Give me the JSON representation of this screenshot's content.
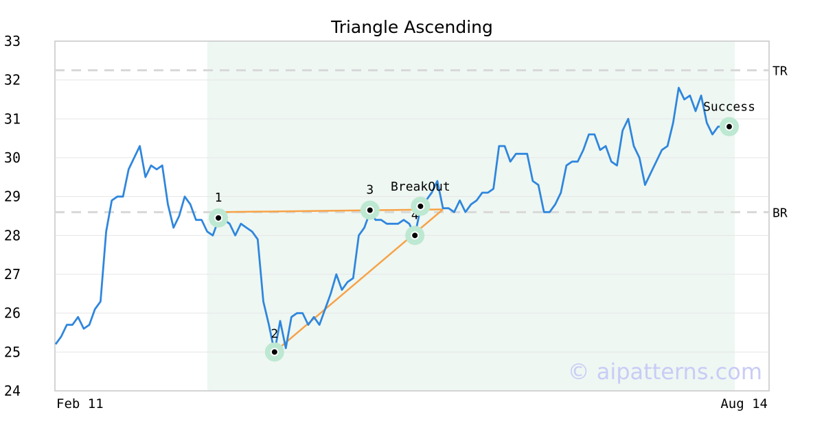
{
  "chart_data": {
    "type": "line",
    "title": "Triangle Ascending",
    "xlabel": "",
    "ylabel": "",
    "ylim": [
      24,
      33
    ],
    "yticks": [
      24,
      25,
      26,
      27,
      28,
      29,
      30,
      31,
      32,
      33
    ],
    "x_tick_labels": [
      "Feb 11",
      "Aug 14"
    ],
    "grid": "horizontal",
    "series": [
      {
        "values": [
          25.2,
          25.4,
          25.7,
          25.7,
          25.9,
          25.6,
          25.7,
          26.1,
          26.3,
          28.1,
          28.9,
          29.0,
          29.0,
          29.7,
          30.0,
          30.3,
          29.5,
          29.8,
          29.7,
          29.8,
          28.8,
          28.2,
          28.5,
          29.0,
          28.8,
          28.4,
          28.4,
          28.1,
          28.0,
          28.4,
          28.4,
          28.3,
          28.0,
          28.3,
          28.2,
          28.1,
          27.9,
          26.3,
          25.7,
          25.0,
          25.8,
          25.1,
          25.9,
          26.0,
          26.0,
          25.7,
          25.9,
          25.7,
          26.1,
          26.5,
          27.0,
          26.6,
          26.8,
          26.9,
          28.0,
          28.2,
          28.6,
          28.4,
          28.4,
          28.3,
          28.3,
          28.3,
          28.4,
          28.3,
          28.0,
          28.7,
          28.9,
          29.1,
          29.4,
          28.7,
          28.7,
          28.6,
          28.9,
          28.6,
          28.8,
          28.9,
          29.1,
          29.1,
          29.2,
          30.3,
          30.3,
          29.9,
          30.1,
          30.1,
          30.1,
          29.4,
          29.3,
          28.6,
          28.6,
          28.8,
          29.1,
          29.8,
          29.9,
          29.9,
          30.2,
          30.6,
          30.6,
          30.2,
          30.3,
          29.9,
          29.8,
          30.7,
          31.0,
          30.3,
          30.0,
          29.3,
          29.6,
          29.9,
          30.2,
          30.3,
          30.9,
          31.8,
          31.5,
          31.6,
          31.2,
          31.6,
          30.9,
          30.6,
          30.8,
          30.8,
          30.8
        ],
        "color": "#2f86dd"
      }
    ],
    "pattern_window": {
      "start_index": 27,
      "end_index": 121
    },
    "levels": [
      {
        "label": "TR",
        "value": 32.25
      },
      {
        "label": "BR",
        "value": 28.6
      }
    ],
    "pattern_points": [
      {
        "label": "1",
        "index": 29,
        "value": 28.45
      },
      {
        "label": "2",
        "index": 39,
        "value": 25.0
      },
      {
        "label": "3",
        "index": 56,
        "value": 28.65
      },
      {
        "label": "4",
        "index": 64,
        "value": 28.0
      },
      {
        "label": "BreakOut",
        "index": 65,
        "value": 28.75
      },
      {
        "label": "Success",
        "index": 120,
        "value": 30.8
      }
    ],
    "triangle_apex_index": 69,
    "colors": {
      "line": "#2f86dd",
      "triangle": "#f7a246",
      "band": "#eef7f2",
      "marker_halo": "#bde8d2",
      "level": "#d8d8d8"
    },
    "watermark": "© aipatterns.com"
  }
}
